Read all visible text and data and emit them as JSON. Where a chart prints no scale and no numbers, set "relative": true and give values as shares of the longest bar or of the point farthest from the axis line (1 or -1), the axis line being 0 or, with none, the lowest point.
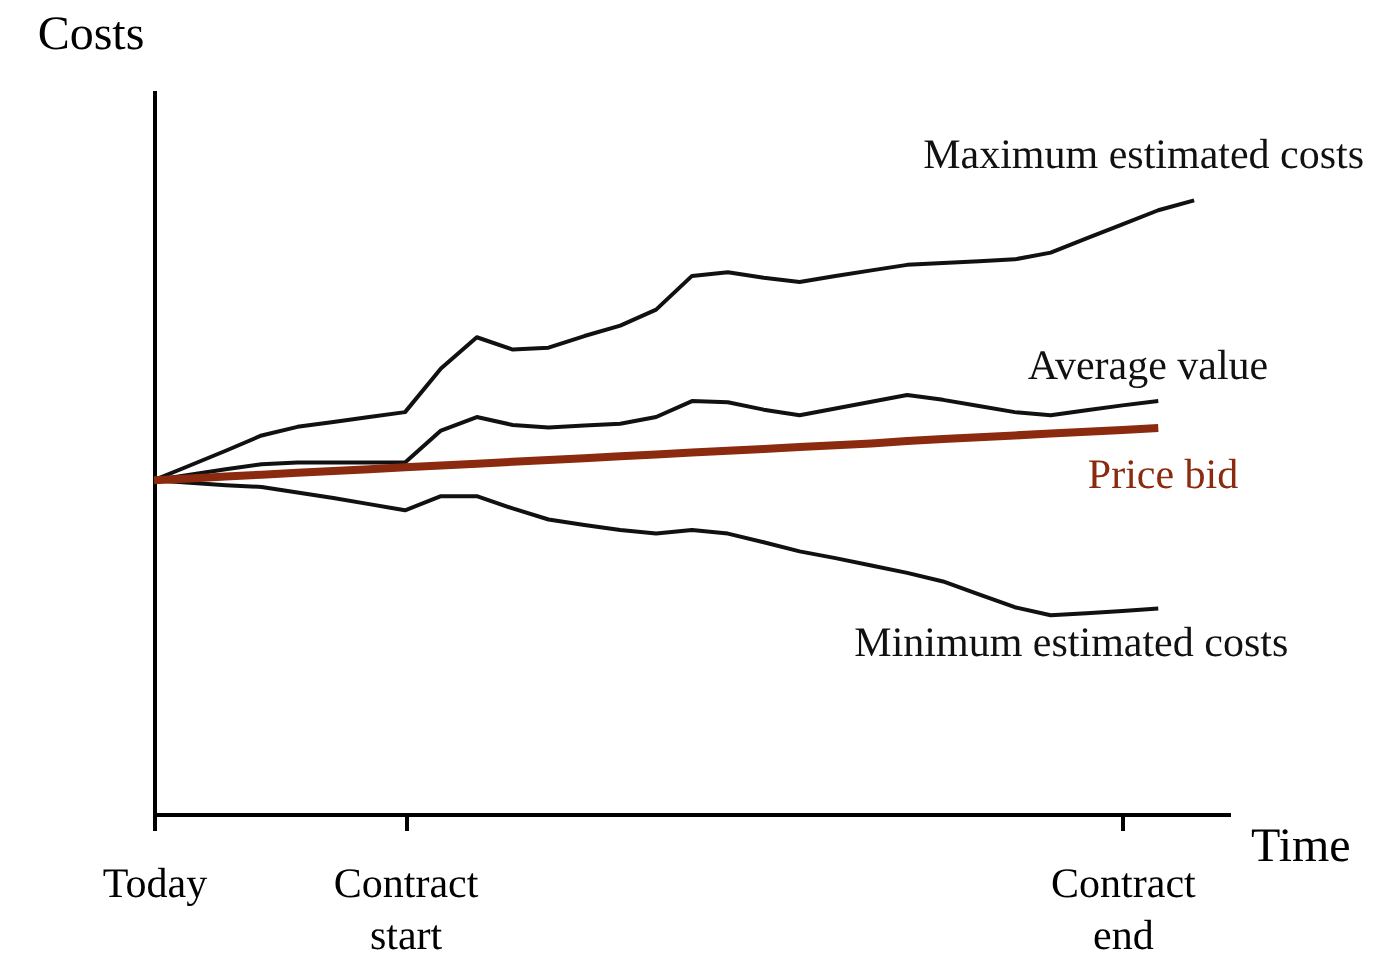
{
  "chart_data": {
    "type": "line",
    "xlabel": "Time",
    "ylabel": "Costs",
    "relative": true,
    "legend": false,
    "categories": [
      "Today",
      null,
      null,
      null,
      null,
      null,
      null,
      "Contract start",
      null,
      null,
      null,
      null,
      null,
      null,
      null,
      null,
      null,
      null,
      null,
      null,
      null,
      null,
      null,
      null,
      null,
      null,
      null,
      "Contract end",
      null,
      null,
      null
    ],
    "series": [
      {
        "name": "Maximum estimated costs",
        "color": "#111111",
        "values": [
          0.544,
          0.568,
          0.592,
          0.617,
          0.631,
          0.639,
          0.647,
          0.655,
          0.726,
          0.777,
          0.757,
          0.76,
          0.779,
          0.796,
          0.822,
          0.877,
          0.883,
          0.874,
          0.867,
          0.877,
          0.886,
          0.895,
          0.898,
          0.901,
          0.904,
          0.915,
          0.938,
          0.961,
          0.984,
          1.0,
          null
        ]
      },
      {
        "name": "Average value",
        "color": "#111111",
        "values": [
          0.544,
          0.553,
          0.562,
          0.57,
          0.573,
          0.573,
          0.573,
          0.573,
          0.625,
          0.647,
          0.634,
          0.63,
          0.633,
          0.636,
          0.647,
          0.673,
          0.671,
          0.659,
          0.65,
          0.661,
          0.672,
          0.683,
          0.675,
          0.665,
          0.655,
          0.65,
          0.658,
          0.666,
          0.673,
          null,
          null
        ]
      },
      {
        "name": "Minimum estimated costs",
        "color": "#111111",
        "values": [
          0.544,
          0.54,
          0.536,
          0.533,
          0.524,
          0.515,
          0.505,
          0.495,
          0.518,
          0.518,
          0.498,
          0.48,
          0.471,
          0.463,
          0.457,
          0.463,
          0.457,
          0.443,
          0.428,
          0.417,
          0.405,
          0.393,
          0.379,
          0.358,
          0.337,
          0.324,
          0.327,
          0.331,
          0.335,
          null,
          null
        ]
      },
      {
        "name": "Price bid",
        "color": "#8b2a0e",
        "values": [
          0.544,
          0.547,
          0.55,
          0.553,
          0.556,
          0.559,
          0.562,
          0.565,
          0.568,
          0.571,
          0.574,
          0.577,
          0.58,
          0.583,
          0.586,
          0.589,
          0.592,
          0.595,
          0.598,
          0.601,
          0.604,
          0.608,
          0.611,
          0.614,
          0.617,
          0.62,
          0.623,
          0.626,
          0.629,
          null,
          null
        ]
      }
    ]
  }
}
